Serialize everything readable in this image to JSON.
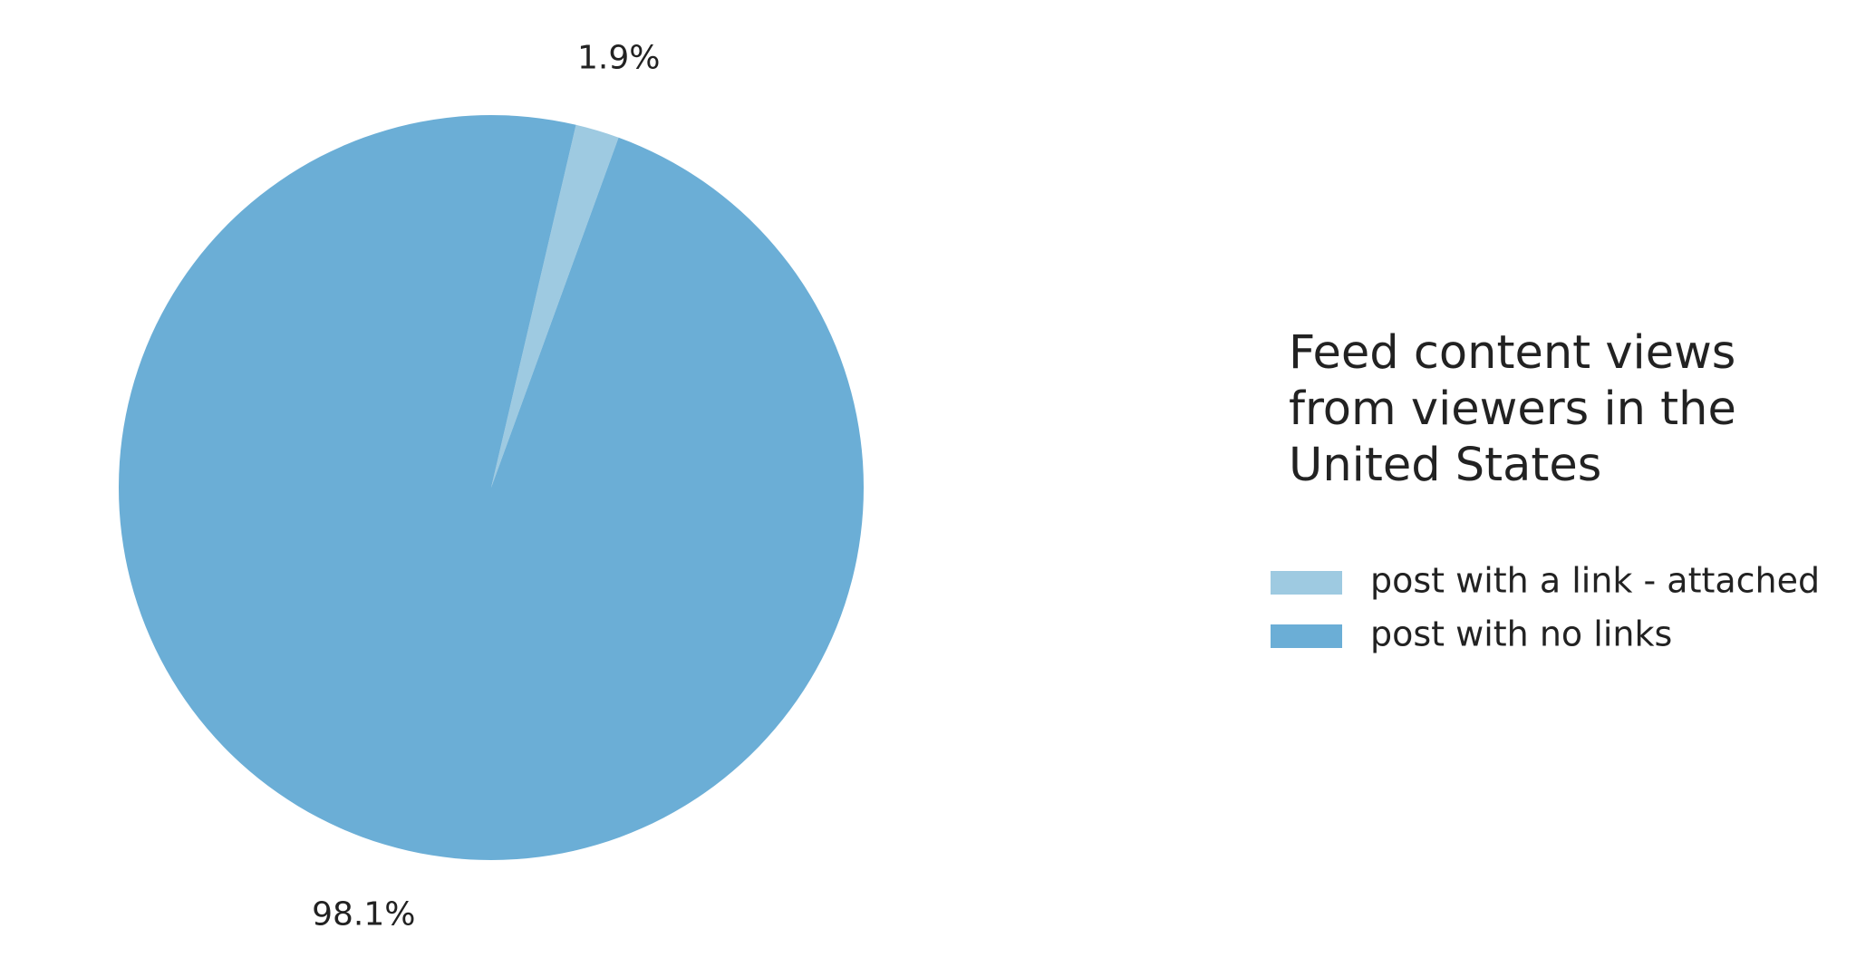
{
  "chart_data": {
    "type": "pie",
    "categories": [
      "post with a link - attached",
      "post with no links"
    ],
    "values": [
      1.9,
      98.1
    ],
    "value_labels": [
      "1.9%",
      "98.1%"
    ],
    "colors": [
      "#9ecae1",
      "#6baed6"
    ],
    "legend_title": [
      "Feed content views",
      "from viewers in the",
      "United States"
    ]
  }
}
